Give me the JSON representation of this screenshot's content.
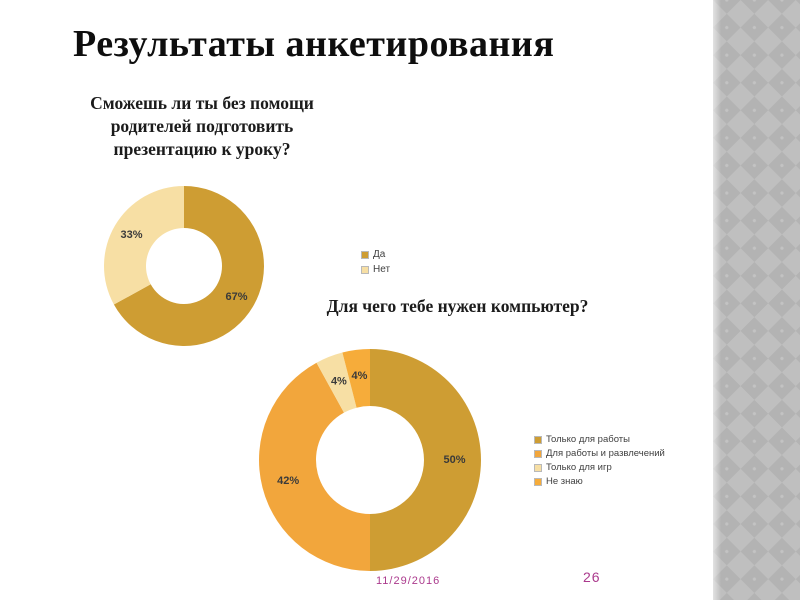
{
  "slide": {
    "title": "Результаты анкетирования",
    "footer": {
      "date": "11/29/2016",
      "page_number": "26",
      "accent_color": "#AB3A8D"
    }
  },
  "questions": {
    "q1": {
      "lines": [
        "Сможешь ли ты без помощи",
        "родителей подготовить",
        "презентацию к уроку?"
      ]
    },
    "q2": "Для чего тебе нужен компьютер?"
  },
  "decor": {
    "strip_diamond_light": "#bfbfbf",
    "strip_diamond_dark": "#b3b3b3"
  },
  "chart_data": [
    {
      "type": "pie",
      "subtype": "donut",
      "title": "Сможешь ли ты без помощи родителей подготовить презентацию к уроку?",
      "labels": [
        "Да",
        "Нет"
      ],
      "values": [
        67,
        33
      ],
      "value_labels": [
        "67%",
        "33%"
      ],
      "colors": [
        "#CE9D33",
        "#F7DFA4"
      ],
      "start_angle_deg": 0,
      "direction": "clockwise",
      "legend_position": "right"
    },
    {
      "type": "pie",
      "subtype": "donut",
      "title": "Для чего тебе нужен компьютер?",
      "labels": [
        "Только для работы",
        "Для  работы и развлечений",
        "Только для игр",
        "Не знаю"
      ],
      "values": [
        50,
        42,
        4,
        4
      ],
      "value_labels": [
        "50%",
        "42%",
        "4%",
        "4%"
      ],
      "colors": [
        "#CE9D33",
        "#F2A63C",
        "#F7DFA4",
        "#F6AC3A"
      ],
      "start_angle_deg": 0,
      "direction": "clockwise",
      "legend_position": "right"
    }
  ]
}
